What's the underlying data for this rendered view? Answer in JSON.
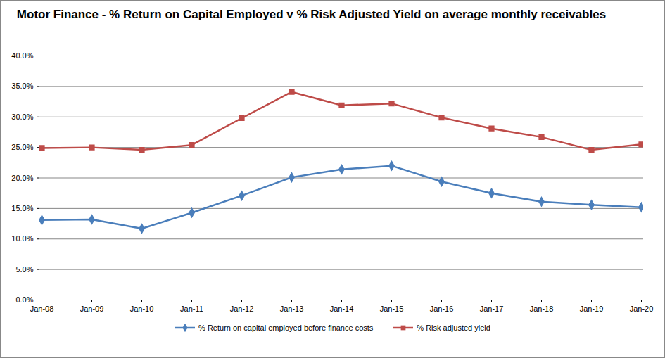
{
  "chart_data": {
    "type": "line",
    "title": "Motor Finance - % Return on Capital Employed v % Risk Adjusted Yield on average monthly receivables",
    "categories": [
      "Jan-08",
      "Jan-09",
      "Jan-10",
      "Jan-11",
      "Jan-12",
      "Jan-13",
      "Jan-14",
      "Jan-15",
      "Jan-16",
      "Jan-17",
      "Jan-18",
      "Jan-19",
      "Jan-20"
    ],
    "series": [
      {
        "name": "% Return on capital employed before finance costs",
        "color": "#4a7ebb",
        "marker": "diamond",
        "line_style": "solid",
        "values": [
          13.1,
          13.2,
          11.7,
          14.3,
          17.1,
          20.1,
          21.4,
          22.0,
          19.4,
          17.5,
          16.1,
          15.6,
          15.2
        ]
      },
      {
        "name": "% Risk adjusted yield",
        "color": "#be4b48",
        "marker": "square",
        "line_style": "solid",
        "values": [
          24.9,
          25.0,
          24.6,
          25.4,
          29.8,
          34.1,
          31.9,
          32.2,
          29.9,
          28.1,
          26.7,
          24.6,
          25.5
        ]
      }
    ],
    "ylim": [
      0,
      40
    ],
    "yticks": [
      {
        "value": 0,
        "label": "0.0%"
      },
      {
        "value": 5,
        "label": "5.0%"
      },
      {
        "value": 10,
        "label": "10.0%"
      },
      {
        "value": 15,
        "label": "15.0%"
      },
      {
        "value": 20,
        "label": "20.0%"
      },
      {
        "value": 25,
        "label": "25.0%"
      },
      {
        "value": 30,
        "label": "30.0%"
      },
      {
        "value": 35,
        "label": "35.0%"
      },
      {
        "value": 40,
        "label": "40.0%"
      }
    ],
    "grid": true,
    "legend": "bottom"
  }
}
